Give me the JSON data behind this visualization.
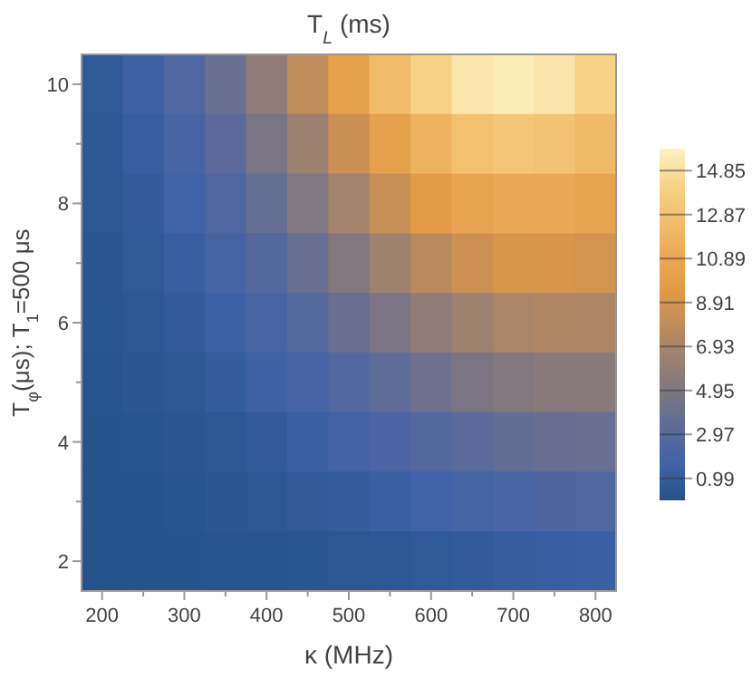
{
  "chart_data": {
    "type": "heatmap",
    "title": "T$_{L}$ (ms)",
    "xlabel": "κ (MHz)",
    "ylabel": "T$_{φ}$(μs); T$_{1}$=500 μs",
    "categories": [
      "200",
      null,
      "300",
      null,
      "400",
      null,
      "500",
      null,
      "600",
      null,
      "700",
      null,
      "800"
    ],
    "y_categories": [
      "10",
      null,
      "8",
      null,
      "6",
      null,
      "4",
      null,
      "2"
    ],
    "cells": [
      [
        0.7,
        1.5,
        2.5,
        3.9,
        5.7,
        7.9,
        10.2,
        12.4,
        14.1,
        15.2,
        15.5,
        15.1,
        14.1
      ],
      [
        0.6,
        1.2,
        2.0,
        3.2,
        4.7,
        6.4,
        8.4,
        10.2,
        11.8,
        12.8,
        13.2,
        13.0,
        12.3
      ],
      [
        0.5,
        0.9,
        1.6,
        2.5,
        3.7,
        5.1,
        6.7,
        8.3,
        9.6,
        10.6,
        11.0,
        11.0,
        10.5
      ],
      [
        0.4,
        0.7,
        1.2,
        1.9,
        2.8,
        3.9,
        5.2,
        6.5,
        7.6,
        8.5,
        9.0,
        9.1,
        8.8
      ],
      [
        0.3,
        0.5,
        0.9,
        1.4,
        2.1,
        2.9,
        3.9,
        4.8,
        5.8,
        6.5,
        7.0,
        7.2,
        7.1
      ],
      [
        0.2,
        0.4,
        0.6,
        1.0,
        1.5,
        2.0,
        2.7,
        3.4,
        4.2,
        4.8,
        5.2,
        5.5,
        5.5
      ],
      [
        0.1,
        0.2,
        0.4,
        0.6,
        0.9,
        1.3,
        1.8,
        2.3,
        2.8,
        3.2,
        3.6,
        3.8,
        3.9
      ],
      [
        0.1,
        0.1,
        0.2,
        0.4,
        0.5,
        0.8,
        1.0,
        1.3,
        1.6,
        1.9,
        2.2,
        2.4,
        2.5
      ],
      [
        0.0,
        0.1,
        0.1,
        0.2,
        0.2,
        0.3,
        0.5,
        0.6,
        0.7,
        0.9,
        1.1,
        1.2,
        1.3
      ]
    ],
    "clim": [
      0,
      15.84
    ],
    "cticks": [
      0.99,
      2.97,
      4.95,
      6.93,
      8.91,
      10.89,
      12.87,
      14.85
    ]
  }
}
